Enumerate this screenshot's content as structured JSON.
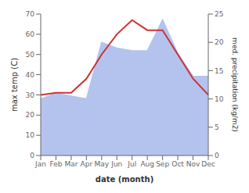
{
  "chart_data": {
    "type": "line",
    "categories": [
      "Jan",
      "Feb",
      "Mar",
      "Apr",
      "May",
      "Jun",
      "Jul",
      "Aug",
      "Sep",
      "Oct",
      "Nov",
      "Dec"
    ],
    "xlabel": "date (month)",
    "ylabel": "max temp (C)",
    "y2label": "med. precipitation (kg/m2)",
    "ylim": [
      0,
      70
    ],
    "yticks": [
      0,
      10,
      20,
      30,
      40,
      50,
      60,
      70
    ],
    "y2lim": [
      0,
      25
    ],
    "y2ticks": [
      0,
      5,
      10,
      15,
      20,
      25
    ],
    "grid": false,
    "series": [
      {
        "type": "area",
        "color": "#b3c3ee",
        "axis": "y2",
        "values": [
          10,
          11,
          10.5,
          10,
          20,
          19,
          18.5,
          18.5,
          24,
          18,
          14,
          14
        ]
      },
      {
        "type": "line",
        "color": "#cc3333",
        "values": [
          30,
          31,
          31,
          38,
          50,
          60,
          67,
          62,
          62,
          50,
          38,
          30
        ]
      }
    ]
  }
}
